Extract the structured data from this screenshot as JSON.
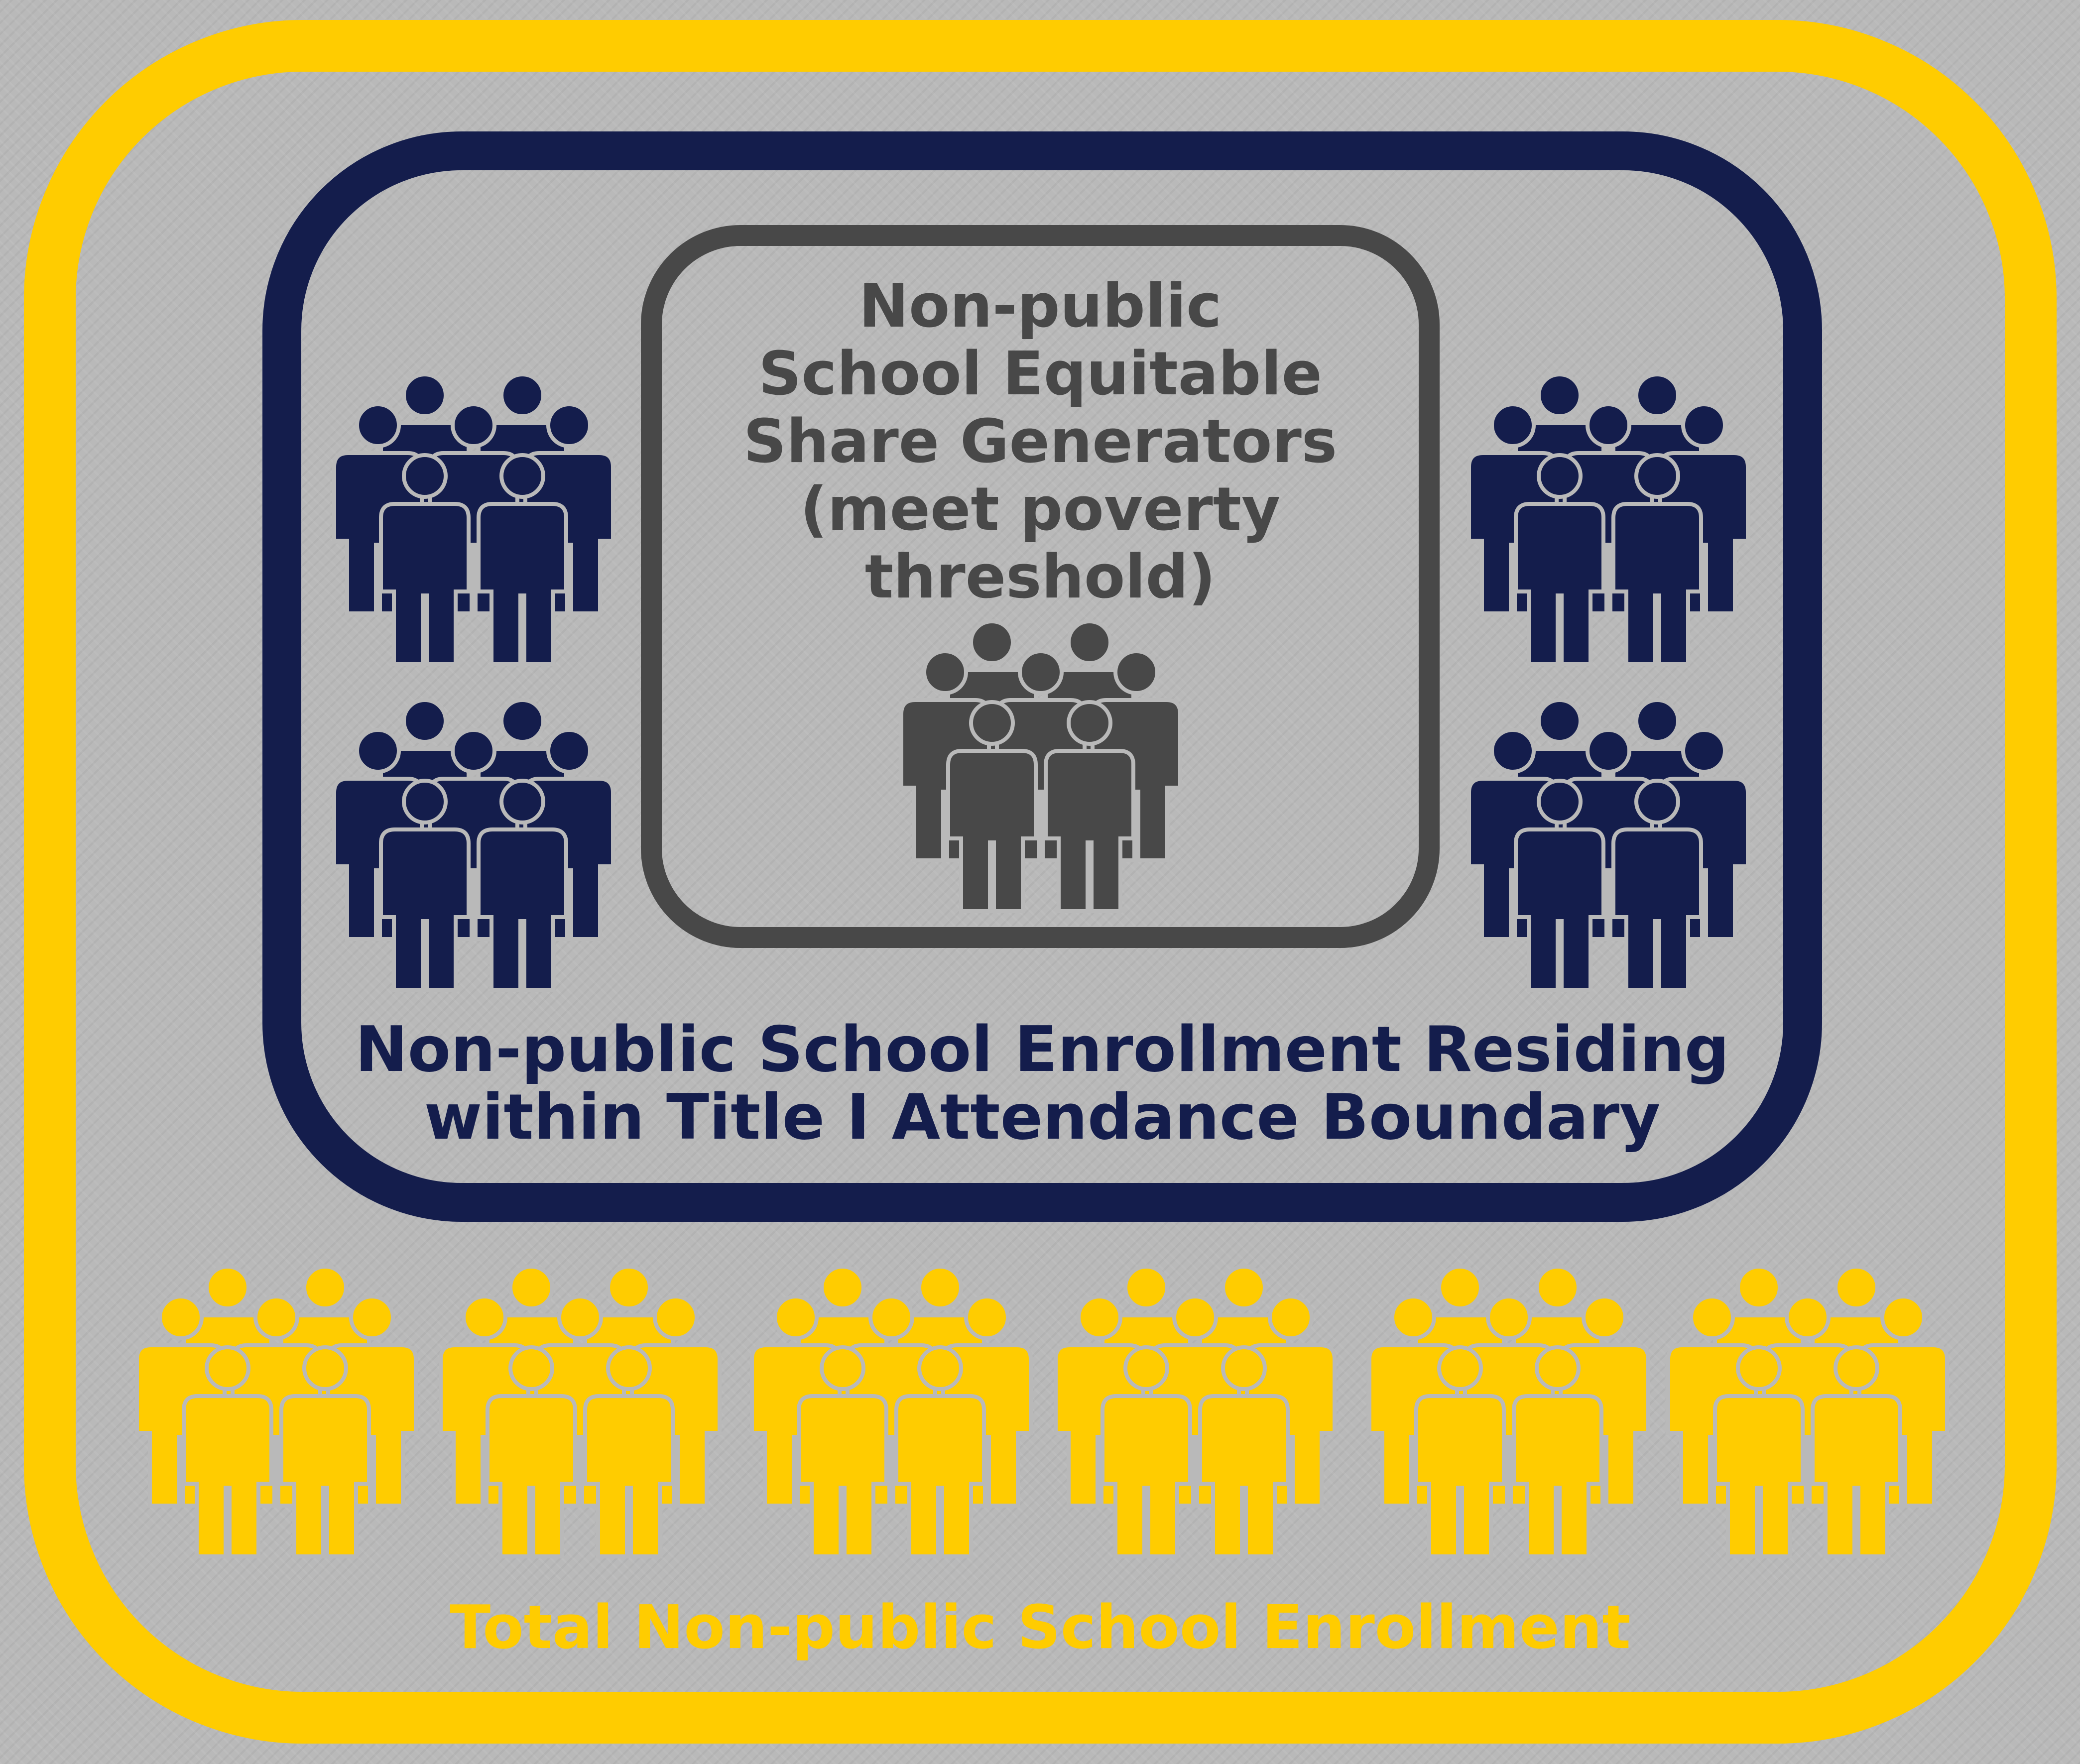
{
  "inner_group": {
    "label_lines": [
      "Non-public",
      "School Equitable",
      "Share Generators",
      "(meet poverty",
      "threshold)"
    ],
    "color": "#484848",
    "icon": "people-group-icon",
    "icon_count": 1
  },
  "middle_group": {
    "label_lines": [
      "Non-public School Enrollment Residing",
      "within Title I Attendance Boundary"
    ],
    "color": "#141d4c",
    "icon": "people-group-icon",
    "icon_count": 4
  },
  "outer_group": {
    "label": "Total Non-public School Enrollment",
    "color": "#ffcc00",
    "icon": "people-group-icon",
    "icon_count": 6
  },
  "background_color": "#b9b9b9"
}
